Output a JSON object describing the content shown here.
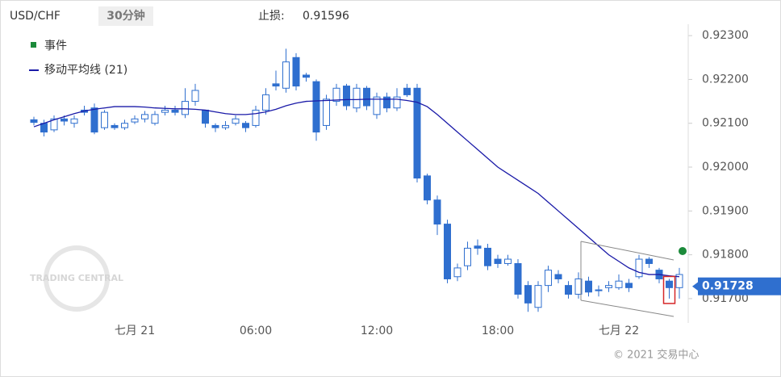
{
  "chart_data": {
    "type": "candlestick",
    "title": "USD/CHF",
    "interval": "30分钟",
    "stop_loss_label": "止损:",
    "stop_loss": 0.91596,
    "legend": {
      "event": "事件",
      "ma": "移动平均线 (21)"
    },
    "watermark": "TRADING CENTRAL",
    "copyright": "© 2021 交易中心",
    "current_price": 0.91728,
    "up_color": "#ffffff",
    "down_color": "#2f6fcf",
    "candle_stroke": "#2f6fcf",
    "ma_color": "#1a1aa8",
    "event_color": "#1b8a3a",
    "categories": [
      null,
      null,
      null,
      null,
      null,
      null,
      null,
      null,
      null,
      null,
      "七月 21",
      null,
      null,
      null,
      null,
      null,
      null,
      null,
      null,
      null,
      null,
      null,
      "06:00",
      null,
      null,
      null,
      null,
      null,
      null,
      null,
      null,
      null,
      null,
      null,
      "12:00",
      null,
      null,
      null,
      null,
      null,
      null,
      null,
      null,
      null,
      null,
      null,
      "18:00",
      null,
      null,
      null,
      null,
      null,
      null,
      null,
      null,
      null,
      null,
      null,
      "七月 22",
      null,
      null,
      null,
      null,
      null,
      null
    ],
    "open": [
      0.92108,
      0.921,
      0.92085,
      0.9211,
      0.921,
      0.9213,
      0.92135,
      0.9209,
      0.92095,
      0.9209,
      0.92103,
      0.9211,
      0.921,
      0.92125,
      0.9213,
      0.9212,
      0.9215,
      0.9213,
      0.92095,
      0.9209,
      0.921,
      0.921,
      0.92095,
      0.9213,
      0.9219,
      0.9218,
      0.9225,
      0.9221,
      0.92195,
      0.92095,
      0.9215,
      0.92185,
      0.92135,
      0.9218,
      0.9212,
      0.9216,
      0.92135,
      0.9218,
      0.9218,
      0.9198,
      0.91925,
      0.9187,
      0.9175,
      0.91775,
      0.9182,
      0.91815,
      0.9179,
      0.9178,
      0.9178,
      0.9173,
      0.9168,
      0.9173,
      0.91755,
      0.9173,
      0.9171,
      0.9174,
      0.9172,
      0.91725,
      0.91725,
      0.91735,
      0.9175,
      0.9179,
      0.91765,
      0.9174,
      0.91725
    ],
    "high": [
      0.92115,
      0.92108,
      0.92118,
      0.92118,
      0.92118,
      0.9214,
      0.92145,
      0.9213,
      0.921,
      0.92108,
      0.92118,
      0.92128,
      0.92128,
      0.9214,
      0.9214,
      0.9218,
      0.9219,
      0.9213,
      0.921,
      0.92105,
      0.92118,
      0.92105,
      0.9214,
      0.9218,
      0.9222,
      0.9227,
      0.9226,
      0.92215,
      0.922,
      0.92165,
      0.9219,
      0.9219,
      0.9219,
      0.92185,
      0.9217,
      0.9217,
      0.9218,
      0.9219,
      0.9219,
      0.91985,
      0.91935,
      0.9188,
      0.9178,
      0.9183,
      0.91835,
      0.91825,
      0.918,
      0.918,
      0.9179,
      0.9174,
      0.9174,
      0.91775,
      0.91765,
      0.9174,
      0.9176,
      0.9175,
      0.9173,
      0.9174,
      0.91755,
      0.91745,
      0.918,
      0.91795,
      0.9177,
      0.91745,
      0.9177
    ],
    "low": [
      0.92095,
      0.9207,
      0.9208,
      0.92095,
      0.9209,
      0.92118,
      0.92075,
      0.92085,
      0.92085,
      0.92085,
      0.92098,
      0.92102,
      0.92095,
      0.92118,
      0.92118,
      0.92112,
      0.9214,
      0.9209,
      0.9208,
      0.92085,
      0.92095,
      0.9208,
      0.9209,
      0.9212,
      0.92175,
      0.9217,
      0.92175,
      0.92195,
      0.9206,
      0.92085,
      0.9214,
      0.9213,
      0.92125,
      0.9213,
      0.9211,
      0.92125,
      0.92128,
      0.9216,
      0.91965,
      0.91915,
      0.91845,
      0.91735,
      0.9174,
      0.91765,
      0.918,
      0.91765,
      0.9177,
      0.91775,
      0.917,
      0.9167,
      0.9167,
      0.91715,
      0.91735,
      0.917,
      0.917,
      0.91705,
      0.91705,
      0.91715,
      0.9172,
      0.91715,
      0.91745,
      0.9177,
      0.91735,
      0.917,
      0.917
    ],
    "close": [
      0.92102,
      0.9208,
      0.9211,
      0.92105,
      0.9211,
      0.92125,
      0.9208,
      0.92125,
      0.9209,
      0.921,
      0.9211,
      0.9212,
      0.9212,
      0.9213,
      0.92125,
      0.9215,
      0.92175,
      0.921,
      0.9209,
      0.92095,
      0.9211,
      0.9209,
      0.9213,
      0.92165,
      0.92185,
      0.9224,
      0.92185,
      0.92205,
      0.9208,
      0.92155,
      0.9218,
      0.9214,
      0.9218,
      0.9214,
      0.9216,
      0.92135,
      0.9216,
      0.92165,
      0.91975,
      0.91925,
      0.9187,
      0.91745,
      0.9177,
      0.91815,
      0.91815,
      0.91775,
      0.9178,
      0.9179,
      0.9171,
      0.9169,
      0.9173,
      0.91765,
      0.91745,
      0.9171,
      0.91745,
      0.91715,
      0.91718,
      0.9173,
      0.9174,
      0.91725,
      0.9179,
      0.9178,
      0.91745,
      0.91725,
      0.91755
    ],
    "ma": [
      0.92092,
      0.921,
      0.92108,
      0.92115,
      0.92122,
      0.92128,
      0.92132,
      0.92135,
      0.92138,
      0.92138,
      0.92138,
      0.92137,
      0.92135,
      0.92134,
      0.92133,
      0.92133,
      0.92132,
      0.9213,
      0.92126,
      0.92122,
      0.9212,
      0.9212,
      0.92122,
      0.92126,
      0.92132,
      0.9214,
      0.92146,
      0.9215,
      0.92151,
      0.92152,
      0.92153,
      0.92154,
      0.92154,
      0.92155,
      0.92155,
      0.92155,
      0.92155,
      0.92152,
      0.92148,
      0.92138,
      0.9212,
      0.921,
      0.9208,
      0.9206,
      0.9204,
      0.9202,
      0.92,
      0.91985,
      0.9197,
      0.91955,
      0.9194,
      0.9192,
      0.919,
      0.9188,
      0.9186,
      0.9184,
      0.9182,
      0.918,
      0.91785,
      0.9177,
      0.9176,
      0.91755,
      0.91755,
      0.91752,
      0.9175
    ],
    "ylim": [
      0.91663,
      0.92326
    ],
    "yticks": [
      {
        "value": 0.923,
        "label": "0.92300"
      },
      {
        "value": 0.922,
        "label": "0.92200"
      },
      {
        "value": 0.921,
        "label": "0.92100"
      },
      {
        "value": 0.92,
        "label": "0.92000"
      },
      {
        "value": 0.919,
        "label": "0.91900"
      },
      {
        "value": 0.918,
        "label": "0.91800"
      },
      {
        "value": 0.917,
        "label": "0.91700"
      }
    ]
  }
}
